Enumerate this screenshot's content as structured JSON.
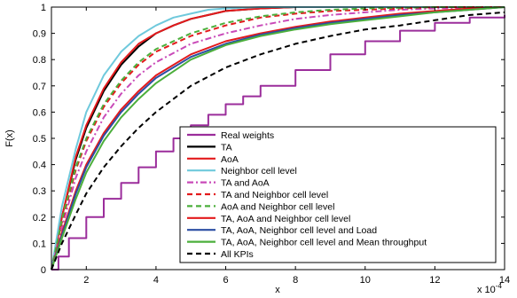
{
  "chart_data": {
    "type": "line",
    "title": "",
    "xlabel": "x",
    "ylabel": "F(x)",
    "x_multiplier": "x 10",
    "x_multiplier_exp": "-4",
    "xlim": [
      1,
      14
    ],
    "ylim": [
      0,
      1
    ],
    "x_ticks": [
      2,
      4,
      6,
      8,
      10,
      12,
      14
    ],
    "x_tick_labels": [
      "2",
      "4",
      "6",
      "8",
      "10",
      "12",
      "14"
    ],
    "y_ticks": [
      0,
      0.1,
      0.2,
      0.3,
      0.4,
      0.5,
      0.6,
      0.7,
      0.8,
      0.9,
      1
    ],
    "y_tick_labels": [
      "0",
      "0.1",
      "0.2",
      "0.3",
      "0.4",
      "0.5",
      "0.6",
      "0.7",
      "0.8",
      "0.9",
      "1"
    ],
    "grid": false,
    "legend_position": "bottom-right",
    "series": [
      {
        "name": "Real weights",
        "color": "#9b2d9b",
        "dash": "solid",
        "step": true,
        "x": [
          1.0,
          1.2,
          1.5,
          2.0,
          2.5,
          3.0,
          3.5,
          4.0,
          4.5,
          5.0,
          5.5,
          6.0,
          6.5,
          7.0,
          8.0,
          9.0,
          10.0,
          11.0,
          12.0,
          13.0,
          14.0
        ],
        "y": [
          0.0,
          0.05,
          0.12,
          0.2,
          0.27,
          0.33,
          0.39,
          0.45,
          0.5,
          0.55,
          0.59,
          0.63,
          0.66,
          0.7,
          0.76,
          0.82,
          0.87,
          0.91,
          0.94,
          0.96,
          0.97
        ]
      },
      {
        "name": "TA",
        "color": "#000000",
        "dash": "solid",
        "x": [
          1.0,
          1.3,
          1.7,
          2.0,
          2.5,
          3.0,
          3.5,
          4.0,
          4.5,
          5.0,
          5.5,
          6.0,
          7.0,
          8.0,
          10.0,
          14.0
        ],
        "y": [
          0.0,
          0.2,
          0.42,
          0.54,
          0.68,
          0.78,
          0.85,
          0.9,
          0.93,
          0.955,
          0.97,
          0.985,
          0.995,
          1.0,
          1.0,
          1.0
        ]
      },
      {
        "name": "AoA",
        "color": "#e31a1c",
        "dash": "solid",
        "x": [
          1.0,
          1.3,
          1.7,
          2.0,
          2.5,
          3.0,
          3.5,
          4.0,
          4.5,
          5.0,
          5.5,
          6.0,
          7.0,
          8.0,
          10.0,
          14.0
        ],
        "y": [
          0.0,
          0.2,
          0.43,
          0.55,
          0.69,
          0.79,
          0.86,
          0.9,
          0.93,
          0.955,
          0.97,
          0.985,
          0.995,
          1.0,
          1.0,
          1.0
        ]
      },
      {
        "name": "Neighbor cell level",
        "color": "#6fc9dc",
        "dash": "solid",
        "x": [
          1.0,
          1.3,
          1.7,
          2.0,
          2.5,
          3.0,
          3.5,
          4.0,
          4.5,
          5.0,
          5.5,
          6.0,
          7.0,
          8.0,
          10.0,
          14.0
        ],
        "y": [
          0.0,
          0.24,
          0.46,
          0.6,
          0.74,
          0.83,
          0.89,
          0.93,
          0.96,
          0.975,
          0.99,
          0.995,
          1.0,
          1.0,
          1.0,
          1.0
        ]
      },
      {
        "name": "TA and AoA",
        "color": "#c94ab8",
        "dash": "dashdot",
        "x": [
          1.0,
          1.3,
          1.7,
          2.0,
          2.5,
          3.0,
          3.5,
          4.0,
          5.0,
          6.0,
          7.0,
          8.0,
          9.0,
          10.0,
          11.0,
          12.0,
          14.0
        ],
        "y": [
          0.0,
          0.16,
          0.35,
          0.45,
          0.58,
          0.67,
          0.74,
          0.79,
          0.86,
          0.9,
          0.93,
          0.955,
          0.97,
          0.98,
          0.99,
          0.995,
          1.0
        ]
      },
      {
        "name": "TA and Neighbor cell level",
        "color": "#e31a1c",
        "dash": "dashed",
        "x": [
          1.0,
          1.3,
          1.7,
          2.0,
          2.5,
          3.0,
          3.5,
          4.0,
          5.0,
          6.0,
          7.0,
          8.0,
          9.0,
          10.0,
          12.0,
          14.0
        ],
        "y": [
          0.0,
          0.18,
          0.38,
          0.49,
          0.62,
          0.71,
          0.78,
          0.83,
          0.89,
          0.93,
          0.96,
          0.975,
          0.985,
          0.99,
          1.0,
          1.0
        ]
      },
      {
        "name": "AoA and Neighbor cell level",
        "color": "#4caf3c",
        "dash": "dashed",
        "x": [
          1.0,
          1.3,
          1.7,
          2.0,
          2.5,
          3.0,
          3.5,
          4.0,
          5.0,
          6.0,
          7.0,
          8.0,
          9.0,
          10.0,
          12.0,
          14.0
        ],
        "y": [
          0.0,
          0.19,
          0.39,
          0.5,
          0.63,
          0.72,
          0.79,
          0.84,
          0.9,
          0.94,
          0.965,
          0.98,
          0.99,
          0.995,
          1.0,
          1.0
        ]
      },
      {
        "name": "TA, AoA and Neighbor cell level",
        "color": "#e31a1c",
        "dash": "solid",
        "x": [
          1.0,
          1.3,
          1.7,
          2.0,
          2.5,
          3.0,
          3.5,
          4.0,
          5.0,
          6.0,
          7.0,
          8.0,
          9.0,
          10.0,
          11.0,
          12.0,
          13.0,
          14.0
        ],
        "y": [
          0.0,
          0.14,
          0.3,
          0.4,
          0.52,
          0.61,
          0.68,
          0.74,
          0.82,
          0.87,
          0.9,
          0.925,
          0.945,
          0.96,
          0.975,
          0.985,
          0.995,
          1.0
        ]
      },
      {
        "name": "TA, AoA, Neighbor cell level and Load",
        "color": "#2c4ea3",
        "dash": "solid",
        "x": [
          1.0,
          1.3,
          1.7,
          2.0,
          2.5,
          3.0,
          3.5,
          4.0,
          5.0,
          6.0,
          7.0,
          8.0,
          9.0,
          10.0,
          11.0,
          12.0,
          13.0,
          14.0
        ],
        "y": [
          0.0,
          0.13,
          0.29,
          0.39,
          0.51,
          0.6,
          0.67,
          0.73,
          0.81,
          0.86,
          0.895,
          0.92,
          0.94,
          0.955,
          0.97,
          0.98,
          0.99,
          1.0
        ]
      },
      {
        "name": "TA, AoA, Neighbor cell level and Mean throughput",
        "color": "#4caf3c",
        "dash": "solid",
        "x": [
          1.0,
          1.3,
          1.7,
          2.0,
          2.5,
          3.0,
          3.5,
          4.0,
          5.0,
          6.0,
          7.0,
          8.0,
          9.0,
          10.0,
          11.0,
          12.0,
          13.0,
          14.0
        ],
        "y": [
          0.0,
          0.12,
          0.27,
          0.37,
          0.49,
          0.58,
          0.65,
          0.71,
          0.8,
          0.855,
          0.89,
          0.915,
          0.935,
          0.95,
          0.965,
          0.98,
          0.99,
          1.0
        ]
      },
      {
        "name": "All KPIs",
        "color": "#000000",
        "dash": "dashed",
        "x": [
          1.0,
          1.3,
          1.7,
          2.0,
          2.5,
          3.0,
          3.5,
          4.0,
          5.0,
          6.0,
          7.0,
          8.0,
          9.0,
          10.0,
          11.0,
          12.0,
          13.0,
          14.0
        ],
        "y": [
          0.0,
          0.1,
          0.21,
          0.29,
          0.39,
          0.47,
          0.54,
          0.6,
          0.7,
          0.77,
          0.82,
          0.86,
          0.89,
          0.915,
          0.93,
          0.95,
          0.97,
          0.98
        ]
      }
    ]
  }
}
